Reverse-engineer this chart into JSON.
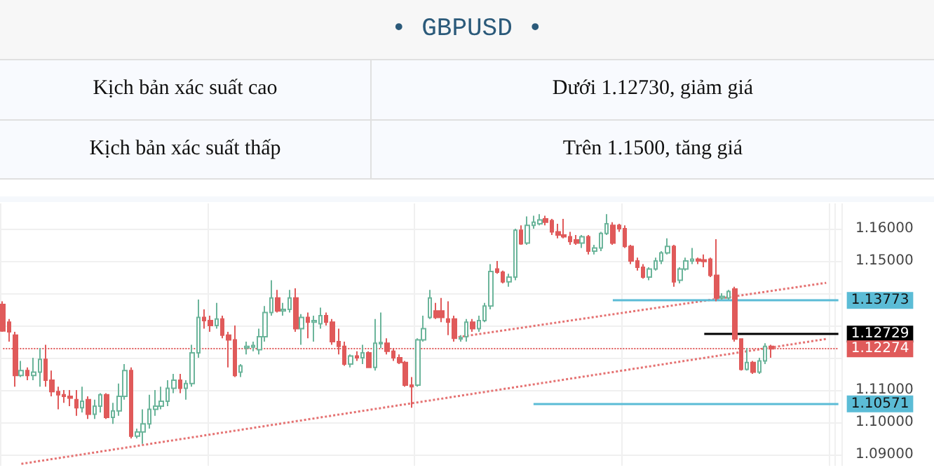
{
  "chart_data": {
    "type": "candlestick",
    "title": "• GBPUSD •",
    "annotations": [
      "Kịch bản xác suất cao",
      "Dưới 1.12730, giảm giá",
      "Kịch bản xác suất thấp",
      "Trên 1.1500, tăng giá"
    ],
    "categories": [
      null,
      null,
      null,
      null,
      null,
      null,
      null,
      null,
      null,
      null,
      null,
      null,
      null,
      null,
      null,
      null,
      null,
      null,
      null,
      null,
      null,
      null,
      null,
      null,
      null,
      null,
      null,
      null,
      null,
      null,
      null,
      null,
      null,
      null,
      null,
      null,
      null,
      null,
      null,
      null,
      null,
      null,
      null,
      null,
      null,
      null,
      null,
      null,
      null,
      null,
      null,
      null,
      null,
      null,
      null,
      null,
      null,
      null,
      null,
      null,
      null,
      null,
      null,
      null,
      null,
      null,
      null,
      null,
      null,
      null,
      null,
      null,
      null,
      null,
      null,
      null,
      null,
      null,
      null,
      null,
      null,
      null,
      null,
      null,
      null,
      null,
      null,
      null,
      null,
      null,
      null,
      null,
      null,
      null,
      null,
      null,
      null,
      null,
      null,
      null,
      null,
      null,
      null,
      null,
      null,
      null,
      null,
      null,
      null,
      null,
      null,
      null,
      null,
      null,
      null,
      null,
      null,
      null,
      null,
      null,
      null,
      null,
      null,
      null,
      null,
      null,
      null,
      null,
      null,
      null,
      null,
      null,
      null,
      null,
      null,
      null,
      null,
      null
    ],
    "ohlc": [
      [
        1.1365,
        1.1375,
        1.128,
        1.1283
      ],
      [
        1.131,
        1.132,
        1.125,
        1.128
      ],
      [
        1.127,
        1.128,
        1.111,
        1.1145
      ],
      [
        1.1145,
        1.119,
        1.114,
        1.116
      ],
      [
        1.116,
        1.117,
        1.113,
        1.1145
      ],
      [
        1.1145,
        1.12,
        1.113,
        1.1155
      ],
      [
        1.1155,
        1.123,
        1.111,
        1.1195
      ],
      [
        1.1195,
        1.124,
        1.111,
        1.113
      ],
      [
        1.113,
        1.116,
        1.108,
        1.1095
      ],
      [
        1.1095,
        1.111,
        1.104,
        1.1085
      ],
      [
        1.1085,
        1.11,
        1.106,
        1.108
      ],
      [
        1.108,
        1.11,
        1.105,
        1.1075
      ],
      [
        1.107,
        1.11,
        1.102,
        1.1045
      ],
      [
        1.1045,
        1.111,
        1.103,
        1.1065
      ],
      [
        1.107,
        1.108,
        1.101,
        1.1025
      ],
      [
        1.1025,
        1.107,
        1.101,
        1.105
      ],
      [
        1.105,
        1.109,
        1.103,
        1.1085
      ],
      [
        1.1085,
        1.109,
        1.101,
        1.1015
      ],
      [
        1.1015,
        1.106,
        1.0995,
        1.1035
      ],
      [
        1.1035,
        1.112,
        1.102,
        1.108
      ],
      [
        1.108,
        1.118,
        1.107,
        1.116
      ],
      [
        1.116,
        1.117,
        1.095,
        1.0957
      ],
      [
        1.0957,
        1.098,
        1.095,
        1.097
      ],
      [
        1.097,
        1.104,
        1.0933,
        1.0995
      ],
      [
        1.0995,
        1.1085,
        1.098,
        1.104
      ],
      [
        1.104,
        1.11,
        1.102,
        1.105
      ],
      [
        1.105,
        1.111,
        1.104,
        1.1065
      ],
      [
        1.1065,
        1.113,
        1.105,
        1.1105
      ],
      [
        1.1105,
        1.115,
        1.109,
        1.113
      ],
      [
        1.113,
        1.115,
        1.109,
        1.1105
      ],
      [
        1.1105,
        1.113,
        1.107,
        1.112
      ],
      [
        1.112,
        1.124,
        1.111,
        1.1215
      ],
      [
        1.1215,
        1.138,
        1.12,
        1.1325
      ],
      [
        1.1325,
        1.135,
        1.129,
        1.1315
      ],
      [
        1.1315,
        1.133,
        1.128,
        1.13
      ],
      [
        1.13,
        1.137,
        1.129,
        1.132
      ],
      [
        1.132,
        1.133,
        1.126,
        1.127
      ],
      [
        1.127,
        1.128,
        1.117,
        1.1255
      ],
      [
        1.1255,
        1.13,
        1.114,
        1.1145
      ],
      [
        1.1155,
        1.118,
        1.114,
        1.1175
      ],
      [
        1.123,
        1.125,
        1.121,
        1.1235
      ],
      [
        1.1233,
        1.125,
        1.122,
        1.1238
      ],
      [
        1.1225,
        1.129,
        1.121,
        1.1265
      ],
      [
        1.1265,
        1.136,
        1.125,
        1.134
      ],
      [
        1.134,
        1.144,
        1.133,
        1.1385
      ],
      [
        1.1385,
        1.141,
        1.134,
        1.1345
      ],
      [
        1.1345,
        1.137,
        1.133,
        1.135
      ],
      [
        1.135,
        1.141,
        1.134,
        1.1385
      ],
      [
        1.1385,
        1.1415,
        1.128,
        1.129
      ],
      [
        1.129,
        1.1335,
        1.124,
        1.1325
      ],
      [
        1.1325,
        1.134,
        1.126,
        1.131
      ],
      [
        1.131,
        1.133,
        1.125,
        1.1315
      ],
      [
        1.1305,
        1.1355,
        1.129,
        1.133
      ],
      [
        1.133,
        1.134,
        1.13,
        1.131
      ],
      [
        1.131,
        1.132,
        1.124,
        1.125
      ],
      [
        1.125,
        1.129,
        1.121,
        1.1235
      ],
      [
        1.1235,
        1.125,
        1.1175,
        1.118
      ],
      [
        1.118,
        1.121,
        1.117,
        1.1205
      ],
      [
        1.1205,
        1.122,
        1.119,
        1.12
      ],
      [
        1.12,
        1.124,
        1.118,
        1.1215
      ],
      [
        1.1215,
        1.122,
        1.117,
        1.117
      ],
      [
        1.117,
        1.132,
        1.116,
        1.1245
      ],
      [
        1.1243,
        1.134,
        1.123,
        1.1247
      ],
      [
        1.1245,
        1.126,
        1.121,
        1.122
      ],
      [
        1.122,
        1.123,
        1.119,
        1.12
      ],
      [
        1.12,
        1.121,
        1.118,
        1.1185
      ],
      [
        1.1185,
        1.119,
        1.111,
        1.1115
      ],
      [
        1.1115,
        1.114,
        1.1045,
        1.111
      ],
      [
        1.1115,
        1.126,
        1.111,
        1.1255
      ],
      [
        1.1255,
        1.133,
        1.125,
        1.129
      ],
      [
        1.1325,
        1.141,
        1.132,
        1.1385
      ],
      [
        1.1345,
        1.137,
        1.132,
        1.1325
      ],
      [
        1.1345,
        1.1385,
        1.131,
        1.1325
      ],
      [
        1.132,
        1.1375,
        1.127,
        1.131
      ],
      [
        1.132,
        1.133,
        1.125,
        1.126
      ],
      [
        1.1258,
        1.127,
        1.125,
        1.1262
      ],
      [
        1.1265,
        1.132,
        1.125,
        1.131
      ],
      [
        1.131,
        1.132,
        1.128,
        1.129
      ],
      [
        1.129,
        1.133,
        1.128,
        1.1315
      ],
      [
        1.1315,
        1.137,
        1.131,
        1.136
      ],
      [
        1.136,
        1.149,
        1.135,
        1.1467
      ],
      [
        1.1475,
        1.15,
        1.146,
        1.1465
      ],
      [
        1.1465,
        1.147,
        1.143,
        1.1435
      ],
      [
        1.1435,
        1.146,
        1.142,
        1.145
      ],
      [
        1.145,
        1.16,
        1.144,
        1.1595
      ],
      [
        1.1595,
        1.161,
        1.155,
        1.1553
      ],
      [
        1.1555,
        1.1638,
        1.155,
        1.161
      ],
      [
        1.161,
        1.164,
        1.16,
        1.162
      ],
      [
        1.1615,
        1.1645,
        1.161,
        1.1627
      ],
      [
        1.163,
        1.164,
        1.161,
        1.162
      ],
      [
        1.1625,
        1.163,
        1.158,
        1.159
      ],
      [
        1.159,
        1.1615,
        1.157,
        1.158
      ],
      [
        1.158,
        1.163,
        1.157,
        1.1575
      ],
      [
        1.1575,
        1.159,
        1.155,
        1.156
      ],
      [
        1.1565,
        1.158,
        1.155,
        1.1555
      ],
      [
        1.1555,
        1.158,
        1.154,
        1.1575
      ],
      [
        1.1575,
        1.158,
        1.152,
        1.153
      ],
      [
        1.153,
        1.155,
        1.152,
        1.154
      ],
      [
        1.154,
        1.159,
        1.153,
        1.1585
      ],
      [
        1.1585,
        1.1645,
        1.158,
        1.1615
      ],
      [
        1.161,
        1.162,
        1.155,
        1.1555
      ],
      [
        1.161,
        1.1615,
        1.159,
        1.16
      ],
      [
        1.16,
        1.161,
        1.154,
        1.1545
      ],
      [
        1.1545,
        1.155,
        1.149,
        1.15
      ],
      [
        1.15,
        1.151,
        1.147,
        1.148
      ],
      [
        1.148,
        1.149,
        1.1445,
        1.145
      ],
      [
        1.145,
        1.148,
        1.144,
        1.1475
      ],
      [
        1.1475,
        1.151,
        1.147,
        1.15
      ],
      [
        1.15,
        1.153,
        1.149,
        1.1525
      ],
      [
        1.1525,
        1.157,
        1.152,
        1.1545
      ],
      [
        1.1545,
        1.155,
        1.142,
        1.1435
      ],
      [
        1.144,
        1.148,
        1.143,
        1.1475
      ],
      [
        1.1475,
        1.151,
        1.147,
        1.15
      ],
      [
        1.15,
        1.154,
        1.149,
        1.1505
      ],
      [
        1.1505,
        1.151,
        1.149,
        1.15
      ],
      [
        1.1503,
        1.152,
        1.148,
        1.1498
      ],
      [
        1.1505,
        1.151,
        1.145,
        1.1455
      ],
      [
        1.1455,
        1.1567,
        1.1375,
        1.1385
      ],
      [
        1.1385,
        1.14,
        1.138,
        1.139
      ],
      [
        1.1385,
        1.141,
        1.138,
        1.1405
      ],
      [
        1.1413,
        1.142,
        1.125,
        1.1258
      ],
      [
        1.1258,
        1.126,
        1.116,
        1.1164
      ],
      [
        1.1164,
        1.123,
        1.116,
        1.1185
      ],
      [
        1.1185,
        1.119,
        1.115,
        1.1155
      ],
      [
        1.1155,
        1.12,
        1.115,
        1.119
      ],
      [
        1.119,
        1.1245,
        1.118,
        1.1235
      ],
      [
        1.1235,
        1.124,
        1.12,
        1.12274
      ],
      null,
      null,
      null,
      null,
      null,
      null,
      null,
      null,
      null,
      null,
      null
    ],
    "series": [
      {
        "type": "line",
        "color": "#e57373",
        "line_style": "dotted",
        "values": [
          null,
          null,
          null,
          1.0871,
          null,
          null,
          null,
          null,
          null,
          null,
          null,
          null,
          null,
          null,
          null,
          null,
          null,
          null,
          null,
          null,
          null,
          null,
          null,
          null,
          null,
          null,
          null,
          null,
          null,
          null,
          null,
          null,
          null,
          null,
          null,
          null,
          null,
          null,
          null,
          null,
          null,
          null,
          null,
          null,
          null,
          null,
          null,
          null,
          null,
          null,
          null,
          null,
          null,
          null,
          null,
          null,
          null,
          null,
          null,
          null,
          null,
          null,
          null,
          null,
          null,
          null,
          null,
          null,
          null,
          null,
          null,
          null,
          null,
          null,
          null,
          null,
          null,
          null,
          null,
          null,
          null,
          null,
          null,
          null,
          null,
          null,
          null,
          null,
          null,
          null,
          null,
          null,
          null,
          null,
          null,
          null,
          null,
          null,
          null,
          null,
          null,
          null,
          null,
          null,
          null,
          null,
          null,
          null,
          null,
          null,
          null,
          null,
          null,
          null,
          null,
          null,
          null,
          null,
          null,
          null,
          null,
          null,
          null,
          null,
          null,
          null,
          null,
          null,
          null,
          null,
          null,
          null,
          null,
          null,
          null,
          1.1258,
          null,
          null
        ]
      },
      {
        "type": "line",
        "color": "#e57373",
        "line_style": "dotted",
        "values": [
          null,
          null,
          null,
          null,
          null,
          null,
          null,
          null,
          null,
          null,
          null,
          null,
          null,
          null,
          null,
          null,
          null,
          null,
          null,
          null,
          null,
          null,
          null,
          null,
          null,
          null,
          null,
          null,
          null,
          null,
          null,
          null,
          null,
          null,
          null,
          null,
          null,
          null,
          null,
          null,
          null,
          null,
          null,
          null,
          null,
          null,
          null,
          null,
          null,
          null,
          null,
          null,
          null,
          null,
          null,
          null,
          null,
          null,
          null,
          null,
          null,
          null,
          null,
          null,
          null,
          null,
          null,
          null,
          null,
          null,
          null,
          null,
          null,
          null,
          1.1262,
          null,
          null,
          null,
          null,
          null,
          null,
          null,
          null,
          null,
          null,
          null,
          null,
          null,
          null,
          null,
          null,
          null,
          null,
          null,
          null,
          null,
          null,
          null,
          null,
          null,
          null,
          null,
          null,
          null,
          null,
          null,
          null,
          null,
          null,
          null,
          null,
          null,
          null,
          null,
          null,
          null,
          null,
          null,
          null,
          null,
          null,
          null,
          null,
          null,
          null,
          null,
          null,
          null,
          null,
          null,
          null,
          null,
          null,
          null,
          null,
          1.1432,
          null,
          null
        ]
      }
    ],
    "ref_lines": [
      {
        "axis": "y",
        "value": 1.13773,
        "label": "1.13773",
        "color": "#5bbcd6"
      },
      {
        "axis": "y",
        "value": 1.12729,
        "label": "1.12729",
        "color": "#000000"
      },
      {
        "axis": "y",
        "value": 1.12274,
        "label": "1.12274",
        "color": "#e05a5a",
        "line_style": "dotted"
      },
      {
        "axis": "y",
        "value": 1.10571,
        "label": "1.10571",
        "color": "#5bbcd6"
      }
    ],
    "ylim": [
      1.0865,
      1.1678
    ],
    "yticks": [
      {
        "value": 1.09,
        "label": "1.09000"
      },
      {
        "value": 1.1,
        "label": "1.10000"
      },
      {
        "value": 1.11,
        "label": "1.11000"
      },
      {
        "value": 1.12,
        "label": null
      },
      {
        "value": 1.13,
        "label": null
      },
      {
        "value": 1.14,
        "label": null
      },
      {
        "value": 1.15,
        "label": "1.15000"
      },
      {
        "value": 1.16,
        "label": "1.16000"
      }
    ],
    "grid": true
  }
}
